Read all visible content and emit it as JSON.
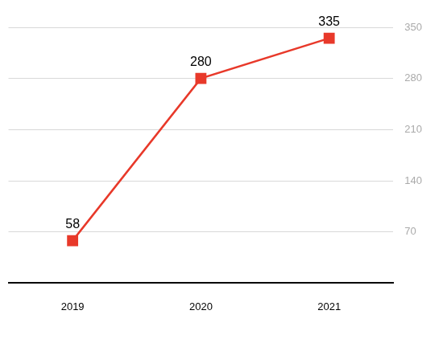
{
  "chart_data": {
    "type": "line",
    "categories": [
      "2019",
      "2020",
      "2021"
    ],
    "values": [
      58,
      280,
      335
    ],
    "color": "#e8392a",
    "marker": "square",
    "line_style": "solid",
    "ylim": [
      0,
      350
    ],
    "yticks": [
      70,
      140,
      210,
      280,
      350
    ],
    "grid": true,
    "data_labels": true
  }
}
